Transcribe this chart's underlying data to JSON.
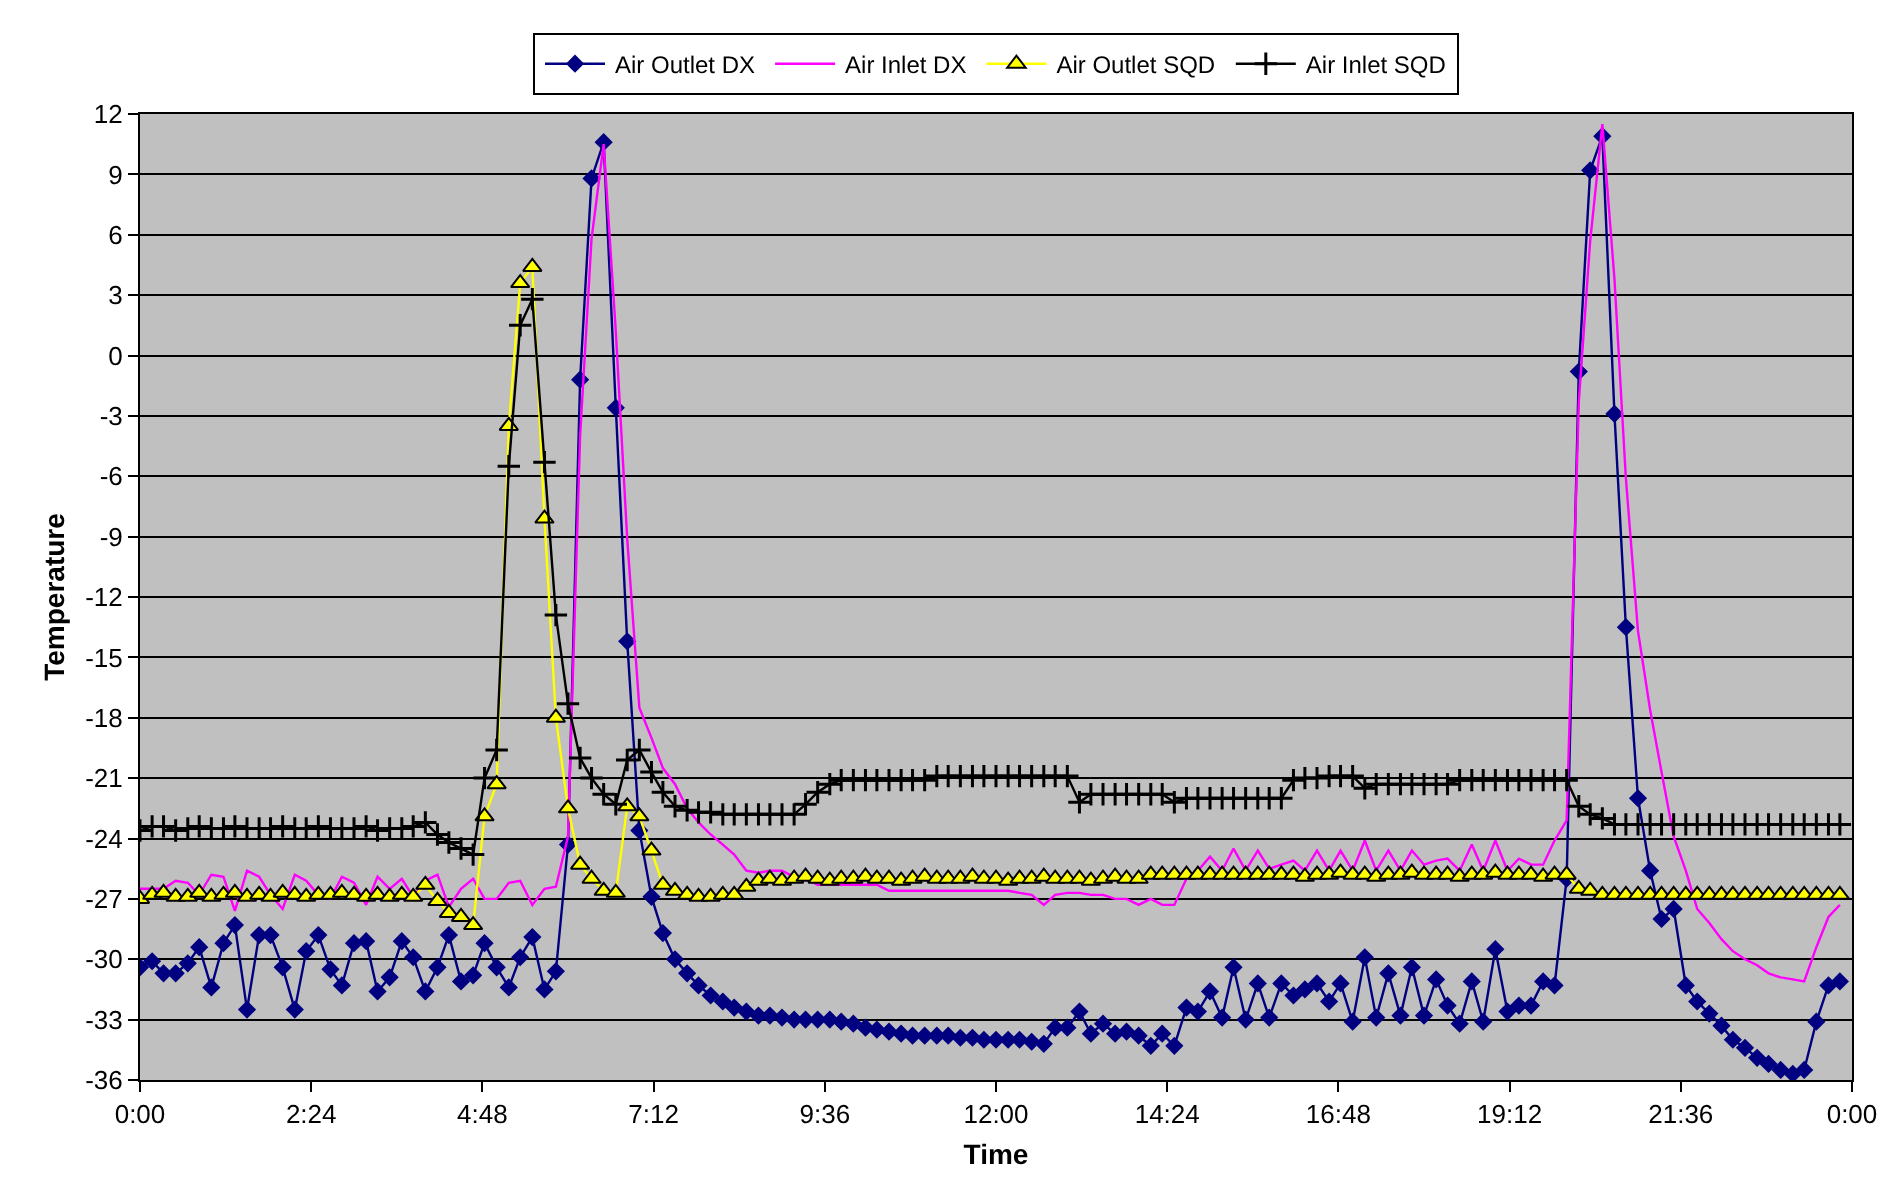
{
  "chart_data": {
    "type": "line",
    "xlabel": "Time",
    "ylabel": "Temperature",
    "xlim": [
      0,
      24
    ],
    "xticks": [
      {
        "value": 0,
        "label": "0:00"
      },
      {
        "value": 2.4,
        "label": "2:24"
      },
      {
        "value": 4.8,
        "label": "4:48"
      },
      {
        "value": 7.2,
        "label": "7:12"
      },
      {
        "value": 9.6,
        "label": "9:36"
      },
      {
        "value": 12,
        "label": "12:00"
      },
      {
        "value": 14.4,
        "label": "14:24"
      },
      {
        "value": 16.8,
        "label": "16:48"
      },
      {
        "value": 19.2,
        "label": "19:12"
      },
      {
        "value": 21.6,
        "label": "21:36"
      },
      {
        "value": 24,
        "label": "0:00"
      }
    ],
    "ylim": [
      -36,
      12
    ],
    "yticks": [
      -36,
      -33,
      -30,
      -27,
      -24,
      -21,
      -18,
      -15,
      -12,
      -9,
      -6,
      -3,
      0,
      3,
      6,
      9,
      12
    ],
    "grid": "y",
    "legend": "top",
    "line_style": "solid",
    "x": [
      0,
      0.17,
      0.33,
      0.5,
      0.67,
      0.83,
      1,
      1.17,
      1.33,
      1.5,
      1.67,
      1.83,
      2,
      2.17,
      2.33,
      2.5,
      2.67,
      2.83,
      3,
      3.17,
      3.33,
      3.5,
      3.67,
      3.83,
      4,
      4.17,
      4.33,
      4.5,
      4.67,
      4.83,
      5,
      5.17,
      5.33,
      5.5,
      5.67,
      5.83,
      6,
      6.17,
      6.33,
      6.5,
      6.67,
      6.83,
      7,
      7.17,
      7.33,
      7.5,
      7.67,
      7.83,
      8,
      8.17,
      8.33,
      8.5,
      8.67,
      8.83,
      9,
      9.17,
      9.33,
      9.5,
      9.67,
      9.83,
      10,
      10.17,
      10.33,
      10.5,
      10.67,
      10.83,
      11,
      11.17,
      11.33,
      11.5,
      11.67,
      11.83,
      12,
      12.17,
      12.33,
      12.5,
      12.67,
      12.83,
      13,
      13.17,
      13.33,
      13.5,
      13.67,
      13.83,
      14,
      14.17,
      14.33,
      14.5,
      14.67,
      14.83,
      15,
      15.17,
      15.33,
      15.5,
      15.67,
      15.83,
      16,
      16.17,
      16.33,
      16.5,
      16.67,
      16.83,
      17,
      17.17,
      17.33,
      17.5,
      17.67,
      17.83,
      18,
      18.17,
      18.33,
      18.5,
      18.67,
      18.83,
      19,
      19.17,
      19.33,
      19.5,
      19.67,
      19.83,
      20,
      20.17,
      20.33,
      20.5,
      20.67,
      20.83,
      21,
      21.17,
      21.33,
      21.5,
      21.67,
      21.83,
      22,
      22.17,
      22.33,
      22.5,
      22.67,
      22.83,
      23,
      23.17,
      23.33,
      23.5,
      23.67,
      23.83
    ],
    "series": [
      {
        "name": "Air Outlet DX",
        "color": "#000080",
        "marker": "diamond",
        "values": [
          -30.4,
          -30.1,
          -30.7,
          -30.7,
          -30.2,
          -29.4,
          -31.4,
          -29.2,
          -28.3,
          -32.5,
          -28.8,
          -28.8,
          -30.4,
          -32.5,
          -29.6,
          -28.8,
          -30.5,
          -31.3,
          -29.2,
          -29.1,
          -31.6,
          -30.9,
          -29.1,
          -29.9,
          -31.6,
          -30.4,
          -28.8,
          -31.1,
          -30.8,
          -29.2,
          -30.4,
          -31.4,
          -29.9,
          -28.9,
          -31.5,
          -30.6,
          -24.3,
          -1.2,
          8.8,
          10.6,
          -2.6,
          -14.2,
          -23.6,
          -26.9,
          -28.7,
          -30,
          -30.7,
          -31.3,
          -31.8,
          -32.1,
          -32.4,
          -32.6,
          -32.8,
          -32.8,
          -32.9,
          -33,
          -33,
          -33,
          -33,
          -33.1,
          -33.2,
          -33.4,
          -33.5,
          -33.6,
          -33.7,
          -33.8,
          -33.8,
          -33.8,
          -33.8,
          -33.9,
          -33.9,
          -34,
          -34,
          -34,
          -34,
          -34.1,
          -34.2,
          -33.4,
          -33.4,
          -32.6,
          -33.7,
          -33.2,
          -33.7,
          -33.6,
          -33.8,
          -34.3,
          -33.7,
          -34.3,
          -32.4,
          -32.6,
          -31.6,
          -32.9,
          -30.4,
          -33,
          -31.2,
          -32.9,
          -31.2,
          -31.8,
          -31.5,
          -31.2,
          -32.1,
          -31.2,
          -33.1,
          -29.9,
          -32.9,
          -30.7,
          -32.8,
          -30.4,
          -32.8,
          -31,
          -32.3,
          -33.2,
          -31.1,
          -33.1,
          -29.5,
          -32.6,
          -32.3,
          -32.3,
          -31.1,
          -31.3,
          -26,
          -0.8,
          9.2,
          10.9,
          -2.9,
          -13.5,
          -22,
          -25.6,
          -28,
          -27.5,
          -31.3,
          -32.1,
          -32.7,
          -33.3,
          -34,
          -34.4,
          -34.9,
          -35.2,
          -35.5,
          -35.7,
          -35.5,
          -33.1,
          -31.3,
          -31.1
        ]
      },
      {
        "name": "Air Inlet DX",
        "color": "#ff00ff",
        "marker": "none",
        "values": [
          -26.5,
          -26.5,
          -26.5,
          -26.1,
          -26.2,
          -26.8,
          -25.8,
          -25.9,
          -27.6,
          -25.6,
          -25.9,
          -26.8,
          -27.5,
          -25.8,
          -26.1,
          -26.8,
          -27,
          -25.9,
          -26.2,
          -27.3,
          -25.9,
          -26.5,
          -26,
          -26.9,
          -26.1,
          -25.8,
          -27.4,
          -26.5,
          -26,
          -27,
          -27,
          -26.2,
          -26.1,
          -27.3,
          -26.5,
          -26.4,
          -23.9,
          -4,
          5.8,
          10.5,
          1.2,
          -9.1,
          -17.5,
          -19,
          -20.5,
          -21.3,
          -22.5,
          -23.2,
          -23.8,
          -24.3,
          -24.8,
          -25.6,
          -25.7,
          -25.6,
          -25.6,
          -25.9,
          -26,
          -26.3,
          -26.3,
          -26.3,
          -26.3,
          -26.3,
          -26.3,
          -26.6,
          -26.6,
          -26.6,
          -26.6,
          -26.6,
          -26.6,
          -26.6,
          -26.6,
          -26.6,
          -26.6,
          -26.6,
          -26.7,
          -26.8,
          -27.3,
          -26.8,
          -26.7,
          -26.7,
          -26.8,
          -26.8,
          -27,
          -27,
          -27.3,
          -27,
          -27.3,
          -27.3,
          -26,
          -25.6,
          -24.9,
          -25.6,
          -24.5,
          -25.6,
          -24.6,
          -25.5,
          -25.3,
          -25.1,
          -25.6,
          -24.6,
          -25.6,
          -24.6,
          -25.6,
          -24.1,
          -25.6,
          -24.6,
          -25.6,
          -24.6,
          -25.3,
          -25.1,
          -25,
          -25.6,
          -24.3,
          -25.6,
          -24.1,
          -25.6,
          -25,
          -25.3,
          -25.3,
          -24.1,
          -23.1,
          -2.3,
          5.7,
          11.5,
          3.8,
          -6.1,
          -13.7,
          -17.6,
          -20.7,
          -23.9,
          -25.6,
          -27.5,
          -28.2,
          -29,
          -29.6,
          -30,
          -30.3,
          -30.7,
          -30.9,
          -31,
          -31.1,
          -29.4,
          -27.9,
          -27.3
        ]
      },
      {
        "name": "Air Outlet SQD",
        "color": "#ffff00",
        "marker": "triangle",
        "values": [
          -27,
          -26.8,
          -26.7,
          -26.9,
          -26.9,
          -26.7,
          -26.9,
          -26.8,
          -26.7,
          -26.9,
          -26.8,
          -26.9,
          -26.7,
          -26.8,
          -26.9,
          -26.8,
          -26.8,
          -26.7,
          -26.8,
          -26.9,
          -26.8,
          -26.9,
          -26.8,
          -26.9,
          -26.3,
          -27.1,
          -27.7,
          -27.9,
          -28.3,
          -22.9,
          -21.3,
          -3.5,
          3.6,
          4.4,
          -8.1,
          -18,
          -22.5,
          -25.3,
          -26,
          -26.6,
          -26.7,
          -22.4,
          -22.9,
          -24.6,
          -26.3,
          -26.6,
          -26.8,
          -26.9,
          -26.9,
          -26.8,
          -26.8,
          -26.4,
          -26.1,
          -26,
          -26.1,
          -26,
          -25.9,
          -26,
          -26.1,
          -26,
          -26,
          -25.9,
          -26,
          -26,
          -26.1,
          -26,
          -25.9,
          -26,
          -26,
          -26,
          -25.9,
          -26,
          -26,
          -26.1,
          -26,
          -26,
          -25.9,
          -26,
          -26,
          -26,
          -26.1,
          -26,
          -25.9,
          -26,
          -26,
          -25.8,
          -25.8,
          -25.8,
          -25.8,
          -25.8,
          -25.8,
          -25.8,
          -25.8,
          -25.8,
          -25.8,
          -25.8,
          -25.8,
          -25.8,
          -25.9,
          -25.8,
          -25.8,
          -25.7,
          -25.8,
          -25.8,
          -25.9,
          -25.8,
          -25.8,
          -25.7,
          -25.8,
          -25.8,
          -25.8,
          -25.9,
          -25.8,
          -25.8,
          -25.7,
          -25.8,
          -25.8,
          -25.8,
          -25.9,
          -25.8,
          -25.8,
          -26.5,
          -26.6,
          -26.8,
          -26.8,
          -26.8,
          -26.8,
          -26.8,
          -26.8,
          -26.8,
          -26.8,
          -26.8,
          -26.8,
          -26.8,
          -26.8,
          -26.8,
          -26.8,
          -26.8,
          -26.8,
          -26.8,
          -26.8,
          -26.8,
          -26.8,
          -26.8
        ]
      },
      {
        "name": "Air Inlet SQD",
        "color": "#000000",
        "marker": "cross",
        "values": [
          -23.6,
          -23.4,
          -23.4,
          -23.6,
          -23.5,
          -23.4,
          -23.5,
          -23.5,
          -23.4,
          -23.5,
          -23.5,
          -23.5,
          -23.4,
          -23.5,
          -23.5,
          -23.4,
          -23.5,
          -23.5,
          -23.5,
          -23.4,
          -23.6,
          -23.5,
          -23.5,
          -23.4,
          -23.2,
          -23.8,
          -24.2,
          -24.5,
          -24.8,
          -21,
          -19.6,
          -5.5,
          1.5,
          2.8,
          -5.3,
          -12.9,
          -17.3,
          -20,
          -21,
          -21.8,
          -22.3,
          -20.1,
          -19.6,
          -20.7,
          -21.7,
          -22.4,
          -22.6,
          -22.7,
          -22.7,
          -22.8,
          -22.8,
          -22.8,
          -22.8,
          -22.8,
          -22.8,
          -22.8,
          -22.3,
          -21.7,
          -21.3,
          -21.1,
          -21.1,
          -21.1,
          -21.1,
          -21.1,
          -21.1,
          -21.1,
          -21.1,
          -20.9,
          -20.9,
          -20.9,
          -20.9,
          -20.9,
          -20.9,
          -20.9,
          -20.9,
          -20.9,
          -20.9,
          -20.9,
          -20.9,
          -22.2,
          -21.8,
          -21.8,
          -21.8,
          -21.8,
          -21.8,
          -21.8,
          -21.8,
          -22.2,
          -22,
          -22,
          -22,
          -22,
          -22,
          -22,
          -22,
          -22,
          -22,
          -21.1,
          -21,
          -21,
          -20.9,
          -20.9,
          -20.9,
          -21.5,
          -21.3,
          -21.3,
          -21.3,
          -21.3,
          -21.3,
          -21.3,
          -21.3,
          -21.1,
          -21.1,
          -21.1,
          -21.1,
          -21.1,
          -21.1,
          -21.1,
          -21.1,
          -21.1,
          -21.1,
          -22.4,
          -22.8,
          -23,
          -23.3,
          -23.3,
          -23.3,
          -23.3,
          -23.3,
          -23.3,
          -23.3,
          -23.3,
          -23.3,
          -23.3,
          -23.3,
          -23.3,
          -23.3,
          -23.3,
          -23.3,
          -23.3,
          -23.3,
          -23.3,
          -23.3,
          -23.3
        ]
      }
    ]
  }
}
